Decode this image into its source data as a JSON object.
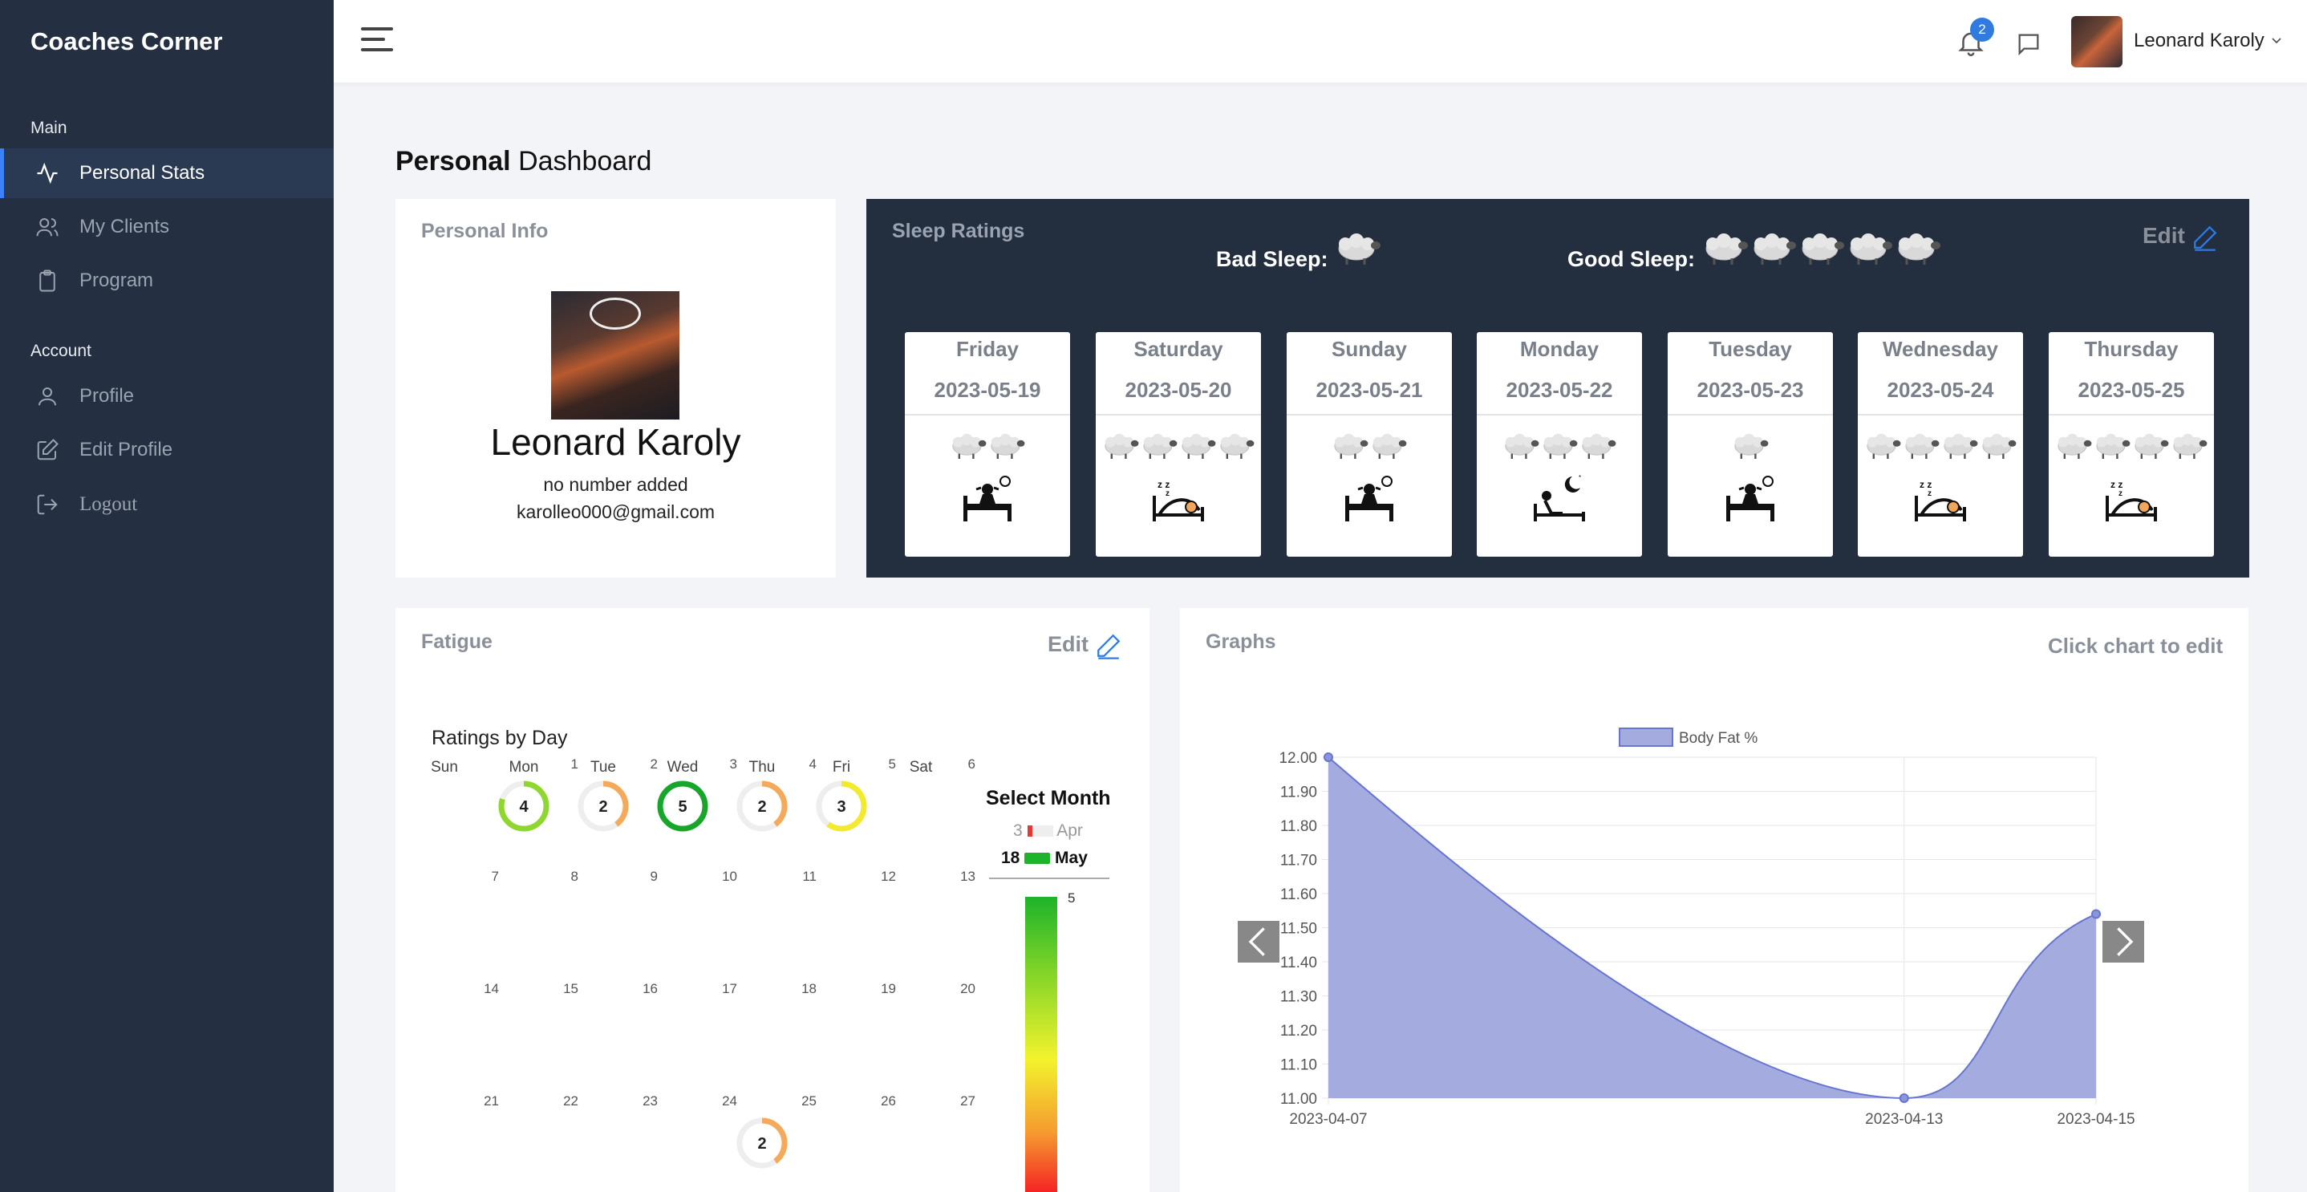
{
  "app": {
    "brand": "Coaches Corner"
  },
  "sidebar": {
    "main_heading": "Main",
    "account_heading": "Account",
    "main_items": [
      {
        "label": "Personal Stats"
      },
      {
        "label": "My Clients"
      },
      {
        "label": "Program"
      }
    ],
    "account_items": [
      {
        "label": "Profile"
      },
      {
        "label": "Edit Profile"
      },
      {
        "label": "Logout"
      }
    ]
  },
  "topbar": {
    "notification_count": "2",
    "user_name": "Leonard Karoly"
  },
  "page": {
    "title_bold": "Personal",
    "title_rest": "Dashboard"
  },
  "personal_info": {
    "title": "Personal Info",
    "name": "Leonard Karoly",
    "phone": "no number added",
    "email": "karolleo000@gmail.com"
  },
  "sleep": {
    "title": "Sleep Ratings",
    "bad_label": "Bad Sleep:",
    "good_label": "Good Sleep:",
    "edit_label": "Edit",
    "days": [
      {
        "day": "Friday",
        "date": "2023-05-19",
        "rating": 2,
        "icon": "awake-in-bed-icon"
      },
      {
        "day": "Saturday",
        "date": "2023-05-20",
        "rating": 4,
        "icon": "sleeping-in-bed-icon"
      },
      {
        "day": "Sunday",
        "date": "2023-05-21",
        "rating": 2,
        "icon": "awake-in-bed-icon"
      },
      {
        "day": "Monday",
        "date": "2023-05-22",
        "rating": 3,
        "icon": "bed-moon-icon"
      },
      {
        "day": "Tuesday",
        "date": "2023-05-23",
        "rating": 1,
        "icon": "awake-in-bed-icon"
      },
      {
        "day": "Wednesday",
        "date": "2023-05-24",
        "rating": 4,
        "icon": "sleeping-in-bed-icon"
      },
      {
        "day": "Thursday",
        "date": "2023-05-25",
        "rating": 4,
        "icon": "sleeping-in-bed-icon"
      }
    ]
  },
  "fatigue": {
    "title": "Fatigue",
    "edit_label": "Edit",
    "calendar_title": "Ratings by Day",
    "weekdays": [
      "Sun",
      "Mon",
      "Tue",
      "Wed",
      "Thu",
      "Fri",
      "Sat"
    ],
    "rows": [
      [
        null,
        1,
        2,
        3,
        4,
        5,
        6
      ],
      [
        7,
        8,
        9,
        10,
        11,
        12,
        13
      ],
      [
        14,
        15,
        16,
        17,
        18,
        19,
        20
      ],
      [
        21,
        22,
        23,
        24,
        25,
        26,
        27
      ]
    ],
    "ratings": [
      {
        "date": 1,
        "value": 4,
        "color": "#8fd630"
      },
      {
        "date": 2,
        "value": 2,
        "color": "#f5a95a"
      },
      {
        "date": 3,
        "value": 5,
        "color": "#17a62a"
      },
      {
        "date": 4,
        "value": 2,
        "color": "#f5a95a"
      },
      {
        "date": 5,
        "value": 3,
        "color": "#f2ea2c"
      },
      {
        "date": 25,
        "value": 2,
        "color": "#f5a95a"
      }
    ],
    "select_month": "Select Month",
    "months": [
      {
        "count": "3",
        "label": "Apr",
        "selected": false,
        "color": "#e53935"
      },
      {
        "count": "18",
        "label": "May",
        "selected": true,
        "color": "#1db32b"
      }
    ],
    "scale_max": "5"
  },
  "graphs": {
    "title": "Graphs",
    "hint": "Click chart to edit"
  },
  "chart_data": {
    "type": "area",
    "x": [
      "2023-04-07",
      "2023-04-13",
      "2023-04-15"
    ],
    "series": [
      {
        "name": "Body Fat %",
        "values": [
          12.0,
          11.0,
          11.54
        ],
        "color": "#8a96d8"
      }
    ],
    "ylim": [
      11.0,
      12.0
    ],
    "yticks": [
      "12.00",
      "11.90",
      "11.80",
      "11.70",
      "11.60",
      "11.50",
      "11.40",
      "11.30",
      "11.20",
      "11.10",
      "11.00"
    ],
    "legend": "top-center",
    "grid": true
  }
}
